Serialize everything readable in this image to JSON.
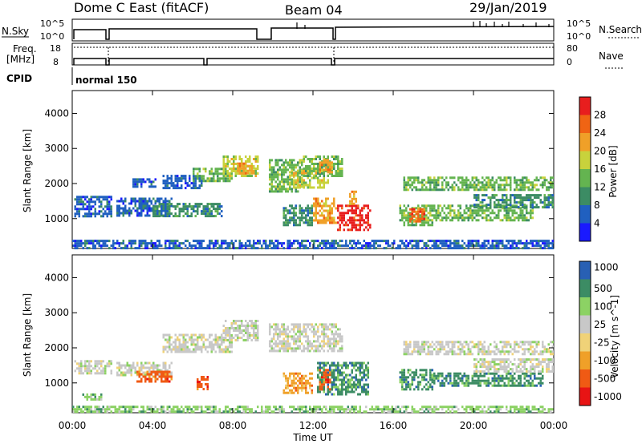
{
  "header": {
    "title": "Dome C East (fitACF)",
    "beam": "Beam 04",
    "date": "29/Jan/2019"
  },
  "status_panel": {
    "nsky_label": "N.Sky",
    "nsky_top": "10^5",
    "nsky_bottom": "10^0",
    "nsky_right_top": "10^5",
    "nsky_right_bottom": "10^0",
    "nsearch_label": "N.Search",
    "freq_label": "Freq.",
    "freq_unit": "[MHz]",
    "freq_top": "18",
    "freq_bottom": "8",
    "nave_label": "Nave",
    "nave_top": "80",
    "nave_bottom": "0",
    "cpid_label": "CPID",
    "cpid_value": "normal 150"
  },
  "colors": {
    "power_scale": [
      "#1a1aff",
      "#2060c0",
      "#3c8c64",
      "#64b450",
      "#c8d23c",
      "#f0a028",
      "#f06414",
      "#e81e1e"
    ],
    "velocity_scale": [
      "#e81414",
      "#f05a14",
      "#f0a028",
      "#f0d278",
      "#c8c8c8",
      "#8cd264",
      "#3c8c64",
      "#2860b4"
    ]
  },
  "chart_data": [
    {
      "type": "heatmap",
      "name": "power",
      "ylabel": "Slant Range [km]",
      "yticks": [
        "1000",
        "2000",
        "3000",
        "4000"
      ],
      "ylim": [
        150,
        4650
      ],
      "xlim": [
        0,
        24
      ],
      "xticks": [
        "00:00",
        "04:00",
        "08:00",
        "12:00",
        "16:00",
        "20:00",
        "00:00"
      ],
      "colorbar_label": "Power [dB]",
      "colorbar_ticks": [
        "4",
        "8",
        "12",
        "16",
        "20",
        "24",
        "28"
      ],
      "colorbar_range": [
        0,
        32
      ],
      "grid": false,
      "regions": [
        {
          "t0": 0.1,
          "t1": 2.0,
          "r0": 1050,
          "r1": 1650,
          "level": 1
        },
        {
          "t0": 2.2,
          "t1": 5.0,
          "r0": 1100,
          "r1": 1600,
          "level": 1
        },
        {
          "t0": 3.0,
          "t1": 4.2,
          "r0": 1900,
          "r1": 2150,
          "level": 1
        },
        {
          "t0": 4.5,
          "t1": 6.5,
          "r0": 1900,
          "r1": 2250,
          "level": 1
        },
        {
          "t0": 4.0,
          "t1": 7.5,
          "r0": 1050,
          "r1": 1450,
          "level": 2
        },
        {
          "t0": 6.0,
          "t1": 8.0,
          "r0": 2050,
          "r1": 2450,
          "level": 3
        },
        {
          "t0": 7.5,
          "t1": 9.3,
          "r0": 2250,
          "r1": 2800,
          "level": 4
        },
        {
          "t0": 8.2,
          "t1": 9.1,
          "r0": 2300,
          "r1": 2600,
          "level": 5
        },
        {
          "t0": 9.8,
          "t1": 11.5,
          "r0": 1800,
          "r1": 2700,
          "level": 3
        },
        {
          "t0": 10.8,
          "t1": 12.8,
          "r0": 1900,
          "r1": 2400,
          "level": 4
        },
        {
          "t0": 11.5,
          "t1": 13.5,
          "r0": 2200,
          "r1": 2800,
          "level": 3
        },
        {
          "t0": 12.3,
          "t1": 13.0,
          "r0": 2300,
          "r1": 2700,
          "level": 5
        },
        {
          "t0": 10.5,
          "t1": 12.0,
          "r0": 800,
          "r1": 1400,
          "level": 2
        },
        {
          "t0": 12.0,
          "t1": 13.2,
          "r0": 900,
          "r1": 1600,
          "level": 5
        },
        {
          "t0": 13.2,
          "t1": 14.8,
          "r0": 700,
          "r1": 1400,
          "level": 7
        },
        {
          "t0": 13.8,
          "t1": 14.2,
          "r0": 1400,
          "r1": 1800,
          "level": 5
        },
        {
          "t0": 16.3,
          "t1": 18.0,
          "r0": 800,
          "r1": 1400,
          "level": 3
        },
        {
          "t0": 16.8,
          "t1": 17.6,
          "r0": 950,
          "r1": 1300,
          "level": 6
        },
        {
          "t0": 16.5,
          "t1": 24.0,
          "r0": 1800,
          "r1": 2200,
          "level": 3
        },
        {
          "t0": 18.0,
          "t1": 23.0,
          "r0": 950,
          "r1": 1400,
          "level": 3
        },
        {
          "t0": 20.0,
          "t1": 24.0,
          "r0": 1300,
          "r1": 1700,
          "level": 2
        },
        {
          "t0": 0.0,
          "t1": 24.0,
          "r0": 150,
          "r1": 400,
          "level": 1
        }
      ]
    },
    {
      "type": "heatmap",
      "name": "velocity",
      "ylabel": "Slant Range [km]",
      "yticks": [
        "1000",
        "2000",
        "3000",
        "4000"
      ],
      "ylim": [
        150,
        4650
      ],
      "xlim": [
        0,
        24
      ],
      "xticks": [
        "00:00",
        "04:00",
        "08:00",
        "12:00",
        "16:00",
        "20:00",
        "00:00"
      ],
      "xlabel": "Time UT",
      "colorbar_label": "Velocity [m s^-1]",
      "colorbar_ticks": [
        "1000",
        "500",
        "100",
        "25",
        "-25",
        "-100",
        "-500",
        "-1000"
      ],
      "grid": false,
      "regions": [
        {
          "t0": 0.1,
          "t1": 2.0,
          "r0": 1300,
          "r1": 1650,
          "level": 4
        },
        {
          "t0": 2.2,
          "t1": 5.0,
          "r0": 1200,
          "r1": 1600,
          "level": 4
        },
        {
          "t0": 3.2,
          "t1": 5.0,
          "r0": 1050,
          "r1": 1350,
          "level": 1
        },
        {
          "t0": 6.2,
          "t1": 6.8,
          "r0": 850,
          "r1": 1200,
          "level": 1
        },
        {
          "t0": 4.5,
          "t1": 8.0,
          "r0": 1900,
          "r1": 2400,
          "level": 4
        },
        {
          "t0": 7.5,
          "t1": 9.3,
          "r0": 2250,
          "r1": 2800,
          "level": 4
        },
        {
          "t0": 9.8,
          "t1": 13.5,
          "r0": 1900,
          "r1": 2700,
          "level": 4
        },
        {
          "t0": 10.5,
          "t1": 12.0,
          "r0": 750,
          "r1": 1300,
          "level": 2
        },
        {
          "t0": 12.2,
          "t1": 14.8,
          "r0": 700,
          "r1": 1600,
          "level": 6
        },
        {
          "t0": 12.3,
          "t1": 12.9,
          "r0": 800,
          "r1": 1400,
          "level": 1
        },
        {
          "t0": 16.3,
          "t1": 18.0,
          "r0": 800,
          "r1": 1400,
          "level": 6
        },
        {
          "t0": 16.5,
          "t1": 24.0,
          "r0": 1800,
          "r1": 2200,
          "level": 4
        },
        {
          "t0": 18.0,
          "t1": 23.5,
          "r0": 950,
          "r1": 1300,
          "level": 6
        },
        {
          "t0": 20.0,
          "t1": 24.0,
          "r0": 1300,
          "r1": 1700,
          "level": 4
        },
        {
          "t0": 0.5,
          "t1": 1.5,
          "r0": 550,
          "r1": 700,
          "level": 5
        },
        {
          "t0": 0.0,
          "t1": 24.0,
          "r0": 150,
          "r1": 350,
          "level": 5
        }
      ]
    }
  ]
}
